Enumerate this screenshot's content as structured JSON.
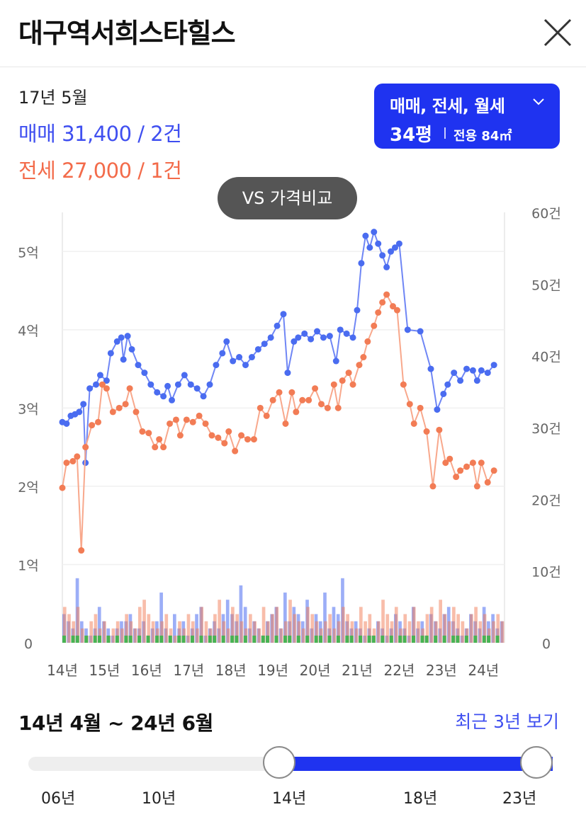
{
  "header": {
    "title": "대구역서희스타힐스"
  },
  "summary": {
    "period": "17년 5월",
    "sale": "매매 31,400 / 2건",
    "jeonse": "전세 27,000 / 1건"
  },
  "filter": {
    "types": "매매, 전세, 월세",
    "size": "34평",
    "area": "전용 84㎡"
  },
  "vs_button": "VS 가격비교",
  "colors": {
    "sale": "#4a6cf0",
    "jeonse": "#f27c55",
    "monthly": "#3bb54a",
    "accent": "#1f33f0"
  },
  "chart_data": {
    "type": "line",
    "x_axis": {
      "start": 2014.0,
      "end": 2024.5,
      "ticks": [
        "14년",
        "15년",
        "16년",
        "17년",
        "18년",
        "19년",
        "20년",
        "21년",
        "22년",
        "23년",
        "24년"
      ]
    },
    "y_left": {
      "ticks": [
        "0",
        "1억",
        "2억",
        "3억",
        "4억",
        "5억"
      ],
      "unit": "억",
      "range": [
        0,
        5.5
      ]
    },
    "y_right": {
      "ticks": [
        "0",
        "10건",
        "20건",
        "30건",
        "40건",
        "50건",
        "60건"
      ],
      "range": [
        0,
        60
      ]
    },
    "series": [
      {
        "name": "매매",
        "points": [
          [
            2014.0,
            2.82
          ],
          [
            2014.1,
            2.8
          ],
          [
            2014.2,
            2.9
          ],
          [
            2014.3,
            2.92
          ],
          [
            2014.4,
            2.95
          ],
          [
            2014.5,
            3.05
          ],
          [
            2014.55,
            2.3
          ],
          [
            2014.65,
            3.25
          ],
          [
            2014.8,
            3.3
          ],
          [
            2014.9,
            3.42
          ],
          [
            2015.05,
            3.35
          ],
          [
            2015.15,
            3.7
          ],
          [
            2015.3,
            3.85
          ],
          [
            2015.4,
            3.9
          ],
          [
            2015.45,
            3.62
          ],
          [
            2015.55,
            3.92
          ],
          [
            2015.65,
            3.75
          ],
          [
            2015.8,
            3.55
          ],
          [
            2015.95,
            3.45
          ],
          [
            2016.1,
            3.3
          ],
          [
            2016.25,
            3.2
          ],
          [
            2016.4,
            3.15
          ],
          [
            2016.5,
            3.28
          ],
          [
            2016.6,
            3.1
          ],
          [
            2016.75,
            3.3
          ],
          [
            2016.9,
            3.42
          ],
          [
            2017.05,
            3.3
          ],
          [
            2017.2,
            3.25
          ],
          [
            2017.35,
            3.15
          ],
          [
            2017.5,
            3.3
          ],
          [
            2017.65,
            3.55
          ],
          [
            2017.8,
            3.7
          ],
          [
            2017.9,
            3.85
          ],
          [
            2018.05,
            3.6
          ],
          [
            2018.2,
            3.65
          ],
          [
            2018.35,
            3.55
          ],
          [
            2018.5,
            3.65
          ],
          [
            2018.65,
            3.75
          ],
          [
            2018.8,
            3.82
          ],
          [
            2018.95,
            3.9
          ],
          [
            2019.1,
            4.05
          ],
          [
            2019.25,
            4.2
          ],
          [
            2019.35,
            3.45
          ],
          [
            2019.5,
            3.85
          ],
          [
            2019.6,
            3.9
          ],
          [
            2019.75,
            3.95
          ],
          [
            2019.9,
            3.88
          ],
          [
            2020.05,
            3.98
          ],
          [
            2020.2,
            3.9
          ],
          [
            2020.35,
            3.92
          ],
          [
            2020.5,
            3.6
          ],
          [
            2020.6,
            4.0
          ],
          [
            2020.75,
            3.95
          ],
          [
            2020.9,
            3.9
          ],
          [
            2021.0,
            4.25
          ],
          [
            2021.1,
            4.85
          ],
          [
            2021.2,
            5.2
          ],
          [
            2021.3,
            5.05
          ],
          [
            2021.4,
            5.25
          ],
          [
            2021.5,
            5.1
          ],
          [
            2021.6,
            4.95
          ],
          [
            2021.7,
            4.8
          ],
          [
            2021.8,
            5.0
          ],
          [
            2021.9,
            5.05
          ],
          [
            2022.0,
            5.1
          ],
          [
            2022.2,
            4.0
          ],
          [
            2022.5,
            3.98
          ],
          [
            2022.75,
            3.5
          ],
          [
            2022.9,
            2.98
          ],
          [
            2023.05,
            3.18
          ],
          [
            2023.15,
            3.3
          ],
          [
            2023.3,
            3.45
          ],
          [
            2023.45,
            3.35
          ],
          [
            2023.6,
            3.5
          ],
          [
            2023.75,
            3.48
          ],
          [
            2023.85,
            3.35
          ],
          [
            2023.95,
            3.48
          ],
          [
            2024.1,
            3.45
          ],
          [
            2024.25,
            3.55
          ]
        ]
      },
      {
        "name": "전세",
        "points": [
          [
            2014.0,
            1.98
          ],
          [
            2014.1,
            2.3
          ],
          [
            2014.25,
            2.32
          ],
          [
            2014.35,
            2.38
          ],
          [
            2014.45,
            1.18
          ],
          [
            2014.55,
            2.5
          ],
          [
            2014.7,
            2.78
          ],
          [
            2014.85,
            2.82
          ],
          [
            2014.95,
            3.3
          ],
          [
            2015.05,
            3.25
          ],
          [
            2015.2,
            2.95
          ],
          [
            2015.35,
            3.0
          ],
          [
            2015.5,
            3.05
          ],
          [
            2015.6,
            3.25
          ],
          [
            2015.75,
            2.95
          ],
          [
            2015.9,
            2.7
          ],
          [
            2016.05,
            2.68
          ],
          [
            2016.2,
            2.5
          ],
          [
            2016.3,
            2.6
          ],
          [
            2016.4,
            2.5
          ],
          [
            2016.55,
            2.8
          ],
          [
            2016.7,
            2.85
          ],
          [
            2016.8,
            2.65
          ],
          [
            2016.95,
            2.85
          ],
          [
            2017.1,
            2.82
          ],
          [
            2017.25,
            2.9
          ],
          [
            2017.4,
            2.8
          ],
          [
            2017.55,
            2.65
          ],
          [
            2017.7,
            2.62
          ],
          [
            2017.85,
            2.55
          ],
          [
            2017.95,
            2.7
          ],
          [
            2018.1,
            2.45
          ],
          [
            2018.25,
            2.65
          ],
          [
            2018.4,
            2.6
          ],
          [
            2018.55,
            2.6
          ],
          [
            2018.7,
            3.0
          ],
          [
            2018.85,
            2.9
          ],
          [
            2019.0,
            3.1
          ],
          [
            2019.15,
            3.2
          ],
          [
            2019.3,
            2.8
          ],
          [
            2019.45,
            3.2
          ],
          [
            2019.55,
            2.95
          ],
          [
            2019.7,
            3.1
          ],
          [
            2019.85,
            3.1
          ],
          [
            2020.0,
            3.25
          ],
          [
            2020.15,
            3.05
          ],
          [
            2020.3,
            3.0
          ],
          [
            2020.45,
            3.3
          ],
          [
            2020.55,
            3.0
          ],
          [
            2020.65,
            3.35
          ],
          [
            2020.8,
            3.45
          ],
          [
            2020.9,
            3.3
          ],
          [
            2021.05,
            3.55
          ],
          [
            2021.15,
            3.65
          ],
          [
            2021.25,
            3.85
          ],
          [
            2021.4,
            4.05
          ],
          [
            2021.5,
            4.22
          ],
          [
            2021.6,
            4.35
          ],
          [
            2021.7,
            4.45
          ],
          [
            2021.85,
            4.3
          ],
          [
            2021.95,
            4.25
          ],
          [
            2022.1,
            3.3
          ],
          [
            2022.25,
            3.05
          ],
          [
            2022.35,
            2.8
          ],
          [
            2022.5,
            3.0
          ],
          [
            2022.65,
            2.7
          ],
          [
            2022.8,
            2.0
          ],
          [
            2022.95,
            2.72
          ],
          [
            2023.1,
            2.3
          ],
          [
            2023.2,
            2.35
          ],
          [
            2023.35,
            2.12
          ],
          [
            2023.45,
            2.2
          ],
          [
            2023.6,
            2.25
          ],
          [
            2023.75,
            2.3
          ],
          [
            2023.85,
            2.0
          ],
          [
            2023.95,
            2.3
          ],
          [
            2024.1,
            2.05
          ],
          [
            2024.25,
            2.2
          ]
        ]
      }
    ],
    "volume_series": [
      {
        "name": "매매",
        "values": [
          4,
          3,
          2,
          9,
          3,
          2,
          1,
          2,
          5,
          3,
          2,
          1,
          2,
          3,
          3,
          4,
          2,
          2,
          3,
          1,
          2,
          3,
          7,
          2,
          1,
          4,
          2,
          3,
          1,
          2,
          4,
          5,
          1,
          2,
          3,
          2,
          4,
          6,
          4,
          3,
          8,
          5,
          2,
          3,
          2,
          1,
          3,
          4,
          5,
          2,
          7,
          3,
          5,
          4,
          3,
          6,
          2,
          4,
          3,
          7,
          2,
          5,
          4,
          9,
          3,
          2,
          3,
          2,
          1,
          2,
          1,
          3,
          2,
          1,
          2,
          4,
          3,
          2,
          1,
          5,
          2,
          3,
          1,
          4,
          3,
          2,
          4,
          5,
          3,
          2,
          1,
          2,
          4,
          3,
          2,
          5,
          3,
          4,
          2,
          3
        ]
      },
      {
        "name": "전세",
        "values": [
          5,
          4,
          3,
          5,
          2,
          1,
          3,
          4,
          2,
          3,
          1,
          2,
          3,
          2,
          4,
          3,
          2,
          5,
          6,
          4,
          3,
          2,
          3,
          4,
          2,
          1,
          3,
          2,
          4,
          3,
          2,
          5,
          3,
          2,
          4,
          6,
          3,
          2,
          5,
          4,
          3,
          2,
          4,
          3,
          2,
          5,
          3,
          4,
          5,
          2,
          3,
          6,
          4,
          3,
          2,
          5,
          4,
          3,
          2,
          3,
          4,
          2,
          3,
          5,
          4,
          3,
          2,
          5,
          3,
          4,
          2,
          3,
          6,
          4,
          3,
          5,
          2,
          4,
          3,
          5,
          3,
          2,
          4,
          5,
          3,
          6,
          4,
          3,
          5,
          4,
          3,
          2,
          4,
          5,
          3,
          4,
          2,
          3,
          4,
          3
        ]
      },
      {
        "name": "월세",
        "values": [
          1,
          0,
          1,
          1,
          0,
          1,
          0,
          1,
          1,
          0,
          1,
          0,
          1,
          0,
          1,
          1,
          0,
          1,
          0,
          1,
          0,
          1,
          1,
          0,
          1,
          0,
          1,
          1,
          0,
          1,
          0,
          1,
          0,
          1,
          1,
          0,
          1,
          0,
          1,
          1,
          0,
          1,
          0,
          1,
          0,
          1,
          1,
          0,
          1,
          0,
          1,
          1,
          0,
          1,
          0,
          1,
          0,
          1,
          1,
          0,
          1,
          0,
          1,
          0,
          1,
          1,
          0,
          1,
          0,
          1,
          1,
          0,
          1,
          0,
          1,
          0,
          1,
          1,
          0,
          1,
          0,
          1,
          1,
          0,
          1,
          0,
          1,
          0,
          1,
          1,
          0,
          1,
          0,
          1,
          0,
          1,
          1,
          0,
          1,
          0
        ]
      }
    ]
  },
  "range": {
    "label": "14년 4월 ~ 24년 6월",
    "recent_link": "최근 3년 보기",
    "ticks": [
      "06년",
      "10년",
      "14년",
      "18년",
      "23년"
    ],
    "selected_start": 0.478,
    "selected_end": 1.0
  }
}
